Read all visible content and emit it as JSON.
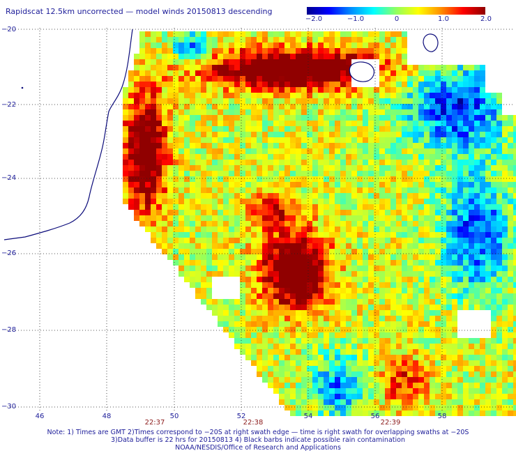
{
  "title": "Rapidscat 12.5km uncorrected — model winds 20150813 descending",
  "colorbar": {
    "ticks": [
      "−2.0",
      "−1.0",
      "0",
      "1.0",
      "2.0"
    ],
    "min": -2.0,
    "max": 2.0,
    "colors": [
      "#000090",
      "#0000ff",
      "#0090ff",
      "#00ffff",
      "#90ff60",
      "#ffff00",
      "#ff9000",
      "#ff0000",
      "#900000"
    ]
  },
  "map": {
    "lon_labels": [
      "46",
      "48",
      "50",
      "52",
      "54",
      "56",
      "58"
    ],
    "lat_labels": [
      "−20",
      "−22",
      "−24",
      "−26",
      "−28",
      "−30"
    ],
    "time_labels": [
      "22:37",
      "22:38",
      "22:39"
    ],
    "land_color": "#ffffff",
    "coast_color": "#0b0b7a"
  },
  "notes": [
    "Note: 1) Times are GMT 2)Times correspond to −20S at right swath edge — time is right swath for overlapping swaths at −20S",
    "3)Data buffer is 22 hrs for 20150813 4) Black barbs indicate possible rain contamination",
    "NOAA/NESDIS/Office of Research and Applications"
  ]
}
